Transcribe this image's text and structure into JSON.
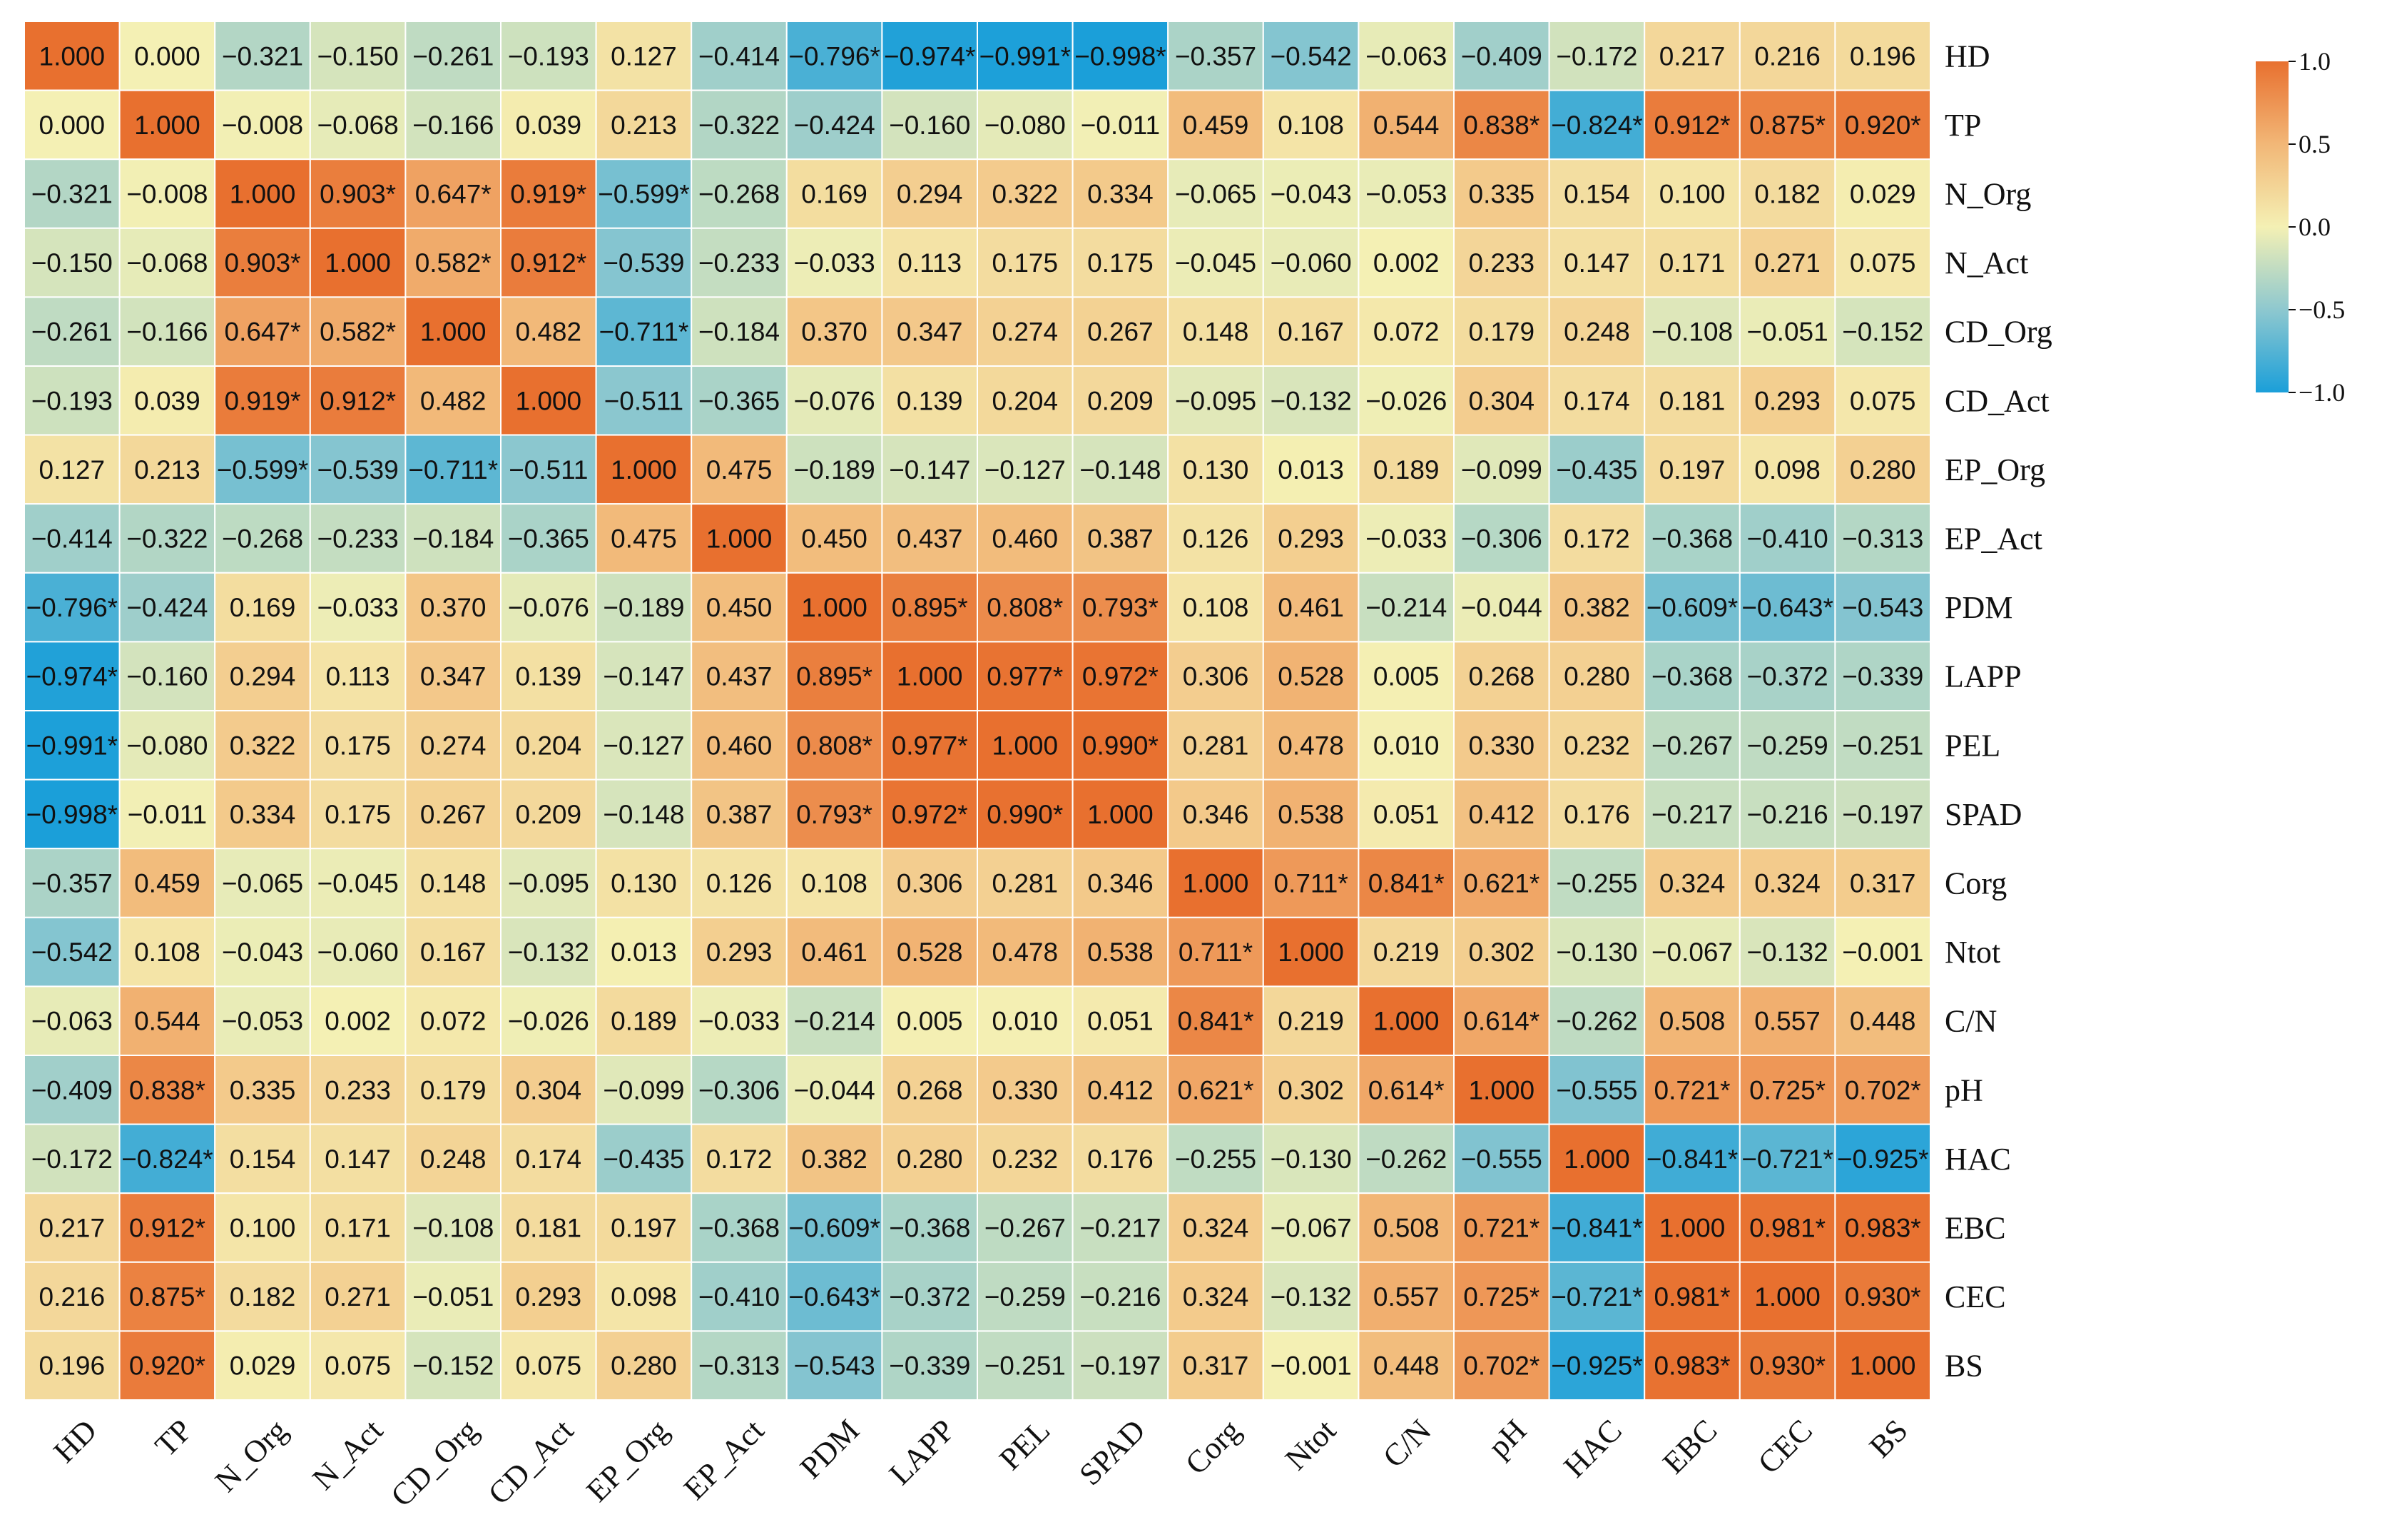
{
  "chart_data": {
    "type": "heatmap",
    "title": "",
    "variables": [
      "HD",
      "TP",
      "N_Org",
      "N_Act",
      "CD_Org",
      "CD_Act",
      "EP_Org",
      "EP_Act",
      "PDM",
      "LAPP",
      "PEL",
      "SPAD",
      "Corg",
      "Ntot",
      "C/N",
      "pH",
      "HAC",
      "EBC",
      "CEC",
      "BS"
    ],
    "values": [
      [
        1.0,
        0.0,
        -0.321,
        -0.15,
        -0.261,
        -0.193,
        0.127,
        -0.414,
        -0.796,
        -0.974,
        -0.991,
        -0.998,
        -0.357,
        -0.542,
        -0.063,
        -0.409,
        -0.172,
        0.217,
        0.216,
        0.196
      ],
      [
        0.0,
        1.0,
        -0.008,
        -0.068,
        -0.166,
        0.039,
        0.213,
        -0.322,
        -0.424,
        -0.16,
        -0.08,
        -0.011,
        0.459,
        0.108,
        0.544,
        0.838,
        -0.824,
        0.912,
        0.875,
        0.92
      ],
      [
        -0.321,
        -0.008,
        1.0,
        0.903,
        0.647,
        0.919,
        -0.599,
        -0.268,
        0.169,
        0.294,
        0.322,
        0.334,
        -0.065,
        -0.043,
        -0.053,
        0.335,
        0.154,
        0.1,
        0.182,
        0.029
      ],
      [
        -0.15,
        -0.068,
        0.903,
        1.0,
        0.582,
        0.912,
        -0.539,
        -0.233,
        -0.033,
        0.113,
        0.175,
        0.175,
        -0.045,
        -0.06,
        0.002,
        0.233,
        0.147,
        0.171,
        0.271,
        0.075
      ],
      [
        -0.261,
        -0.166,
        0.647,
        0.582,
        1.0,
        0.482,
        -0.711,
        -0.184,
        0.37,
        0.347,
        0.274,
        0.267,
        0.148,
        0.167,
        0.072,
        0.179,
        0.248,
        -0.108,
        -0.051,
        -0.152
      ],
      [
        -0.193,
        0.039,
        0.919,
        0.912,
        0.482,
        1.0,
        -0.511,
        -0.365,
        -0.076,
        0.139,
        0.204,
        0.209,
        -0.095,
        -0.132,
        -0.026,
        0.304,
        0.174,
        0.181,
        0.293,
        0.075
      ],
      [
        0.127,
        0.213,
        -0.599,
        -0.539,
        -0.711,
        -0.511,
        1.0,
        0.475,
        -0.189,
        -0.147,
        -0.127,
        -0.148,
        0.13,
        0.013,
        0.189,
        -0.099,
        -0.435,
        0.197,
        0.098,
        0.28
      ],
      [
        -0.414,
        -0.322,
        -0.268,
        -0.233,
        -0.184,
        -0.365,
        0.475,
        1.0,
        0.45,
        0.437,
        0.46,
        0.387,
        0.126,
        0.293,
        -0.033,
        -0.306,
        0.172,
        -0.368,
        -0.41,
        -0.313
      ],
      [
        -0.796,
        -0.424,
        0.169,
        -0.033,
        0.37,
        -0.076,
        -0.189,
        0.45,
        1.0,
        0.895,
        0.808,
        0.793,
        0.108,
        0.461,
        -0.214,
        -0.044,
        0.382,
        -0.609,
        -0.643,
        -0.543
      ],
      [
        -0.974,
        -0.16,
        0.294,
        0.113,
        0.347,
        0.139,
        -0.147,
        0.437,
        0.895,
        1.0,
        0.977,
        0.972,
        0.306,
        0.528,
        0.005,
        0.268,
        0.28,
        -0.368,
        -0.372,
        -0.339
      ],
      [
        -0.991,
        -0.08,
        0.322,
        0.175,
        0.274,
        0.204,
        -0.127,
        0.46,
        0.808,
        0.977,
        1.0,
        0.99,
        0.281,
        0.478,
        0.01,
        0.33,
        0.232,
        -0.267,
        -0.259,
        -0.251
      ],
      [
        -0.998,
        -0.011,
        0.334,
        0.175,
        0.267,
        0.209,
        -0.148,
        0.387,
        0.793,
        0.972,
        0.99,
        1.0,
        0.346,
        0.538,
        0.051,
        0.412,
        0.176,
        -0.217,
        -0.216,
        -0.197
      ],
      [
        -0.357,
        0.459,
        -0.065,
        -0.045,
        0.148,
        -0.095,
        0.13,
        0.126,
        0.108,
        0.306,
        0.281,
        0.346,
        1.0,
        0.711,
        0.841,
        0.621,
        -0.255,
        0.324,
        0.324,
        0.317
      ],
      [
        -0.542,
        0.108,
        -0.043,
        -0.06,
        0.167,
        -0.132,
        0.013,
        0.293,
        0.461,
        0.528,
        0.478,
        0.538,
        0.711,
        1.0,
        0.219,
        0.302,
        -0.13,
        -0.067,
        -0.132,
        -0.001
      ],
      [
        -0.063,
        0.544,
        -0.053,
        0.002,
        0.072,
        -0.026,
        0.189,
        -0.033,
        -0.214,
        0.005,
        0.01,
        0.051,
        0.841,
        0.219,
        1.0,
        0.614,
        -0.262,
        0.508,
        0.557,
        0.448
      ],
      [
        -0.409,
        0.838,
        0.335,
        0.233,
        0.179,
        0.304,
        -0.099,
        -0.306,
        -0.044,
        0.268,
        0.33,
        0.412,
        0.621,
        0.302,
        0.614,
        1.0,
        -0.555,
        0.721,
        0.725,
        0.702
      ],
      [
        -0.172,
        -0.824,
        0.154,
        0.147,
        0.248,
        0.174,
        -0.435,
        0.172,
        0.382,
        0.28,
        0.232,
        0.176,
        -0.255,
        -0.13,
        -0.262,
        -0.555,
        1.0,
        -0.841,
        -0.721,
        -0.925
      ],
      [
        0.217,
        0.912,
        0.1,
        0.171,
        -0.108,
        0.181,
        0.197,
        -0.368,
        -0.609,
        -0.368,
        -0.267,
        -0.217,
        0.324,
        -0.067,
        0.508,
        0.721,
        -0.841,
        1.0,
        0.981,
        0.983
      ],
      [
        0.216,
        0.875,
        0.182,
        0.271,
        -0.051,
        0.293,
        0.098,
        -0.41,
        -0.643,
        -0.372,
        -0.259,
        -0.216,
        0.324,
        -0.132,
        0.557,
        0.725,
        -0.721,
        0.981,
        1.0,
        0.93
      ],
      [
        0.196,
        0.92,
        0.029,
        0.075,
        -0.152,
        0.075,
        0.28,
        -0.313,
        -0.543,
        -0.339,
        -0.251,
        -0.197,
        0.317,
        -0.001,
        0.448,
        0.702,
        -0.925,
        0.983,
        0.93,
        1.0
      ]
    ],
    "significant": [
      [
        0,
        0,
        0,
        0,
        0,
        0,
        0,
        0,
        1,
        1,
        1,
        1,
        0,
        0,
        0,
        0,
        0,
        0,
        0,
        0
      ],
      [
        0,
        0,
        0,
        0,
        0,
        0,
        0,
        0,
        0,
        0,
        0,
        0,
        0,
        0,
        0,
        1,
        1,
        1,
        1,
        1
      ],
      [
        0,
        0,
        0,
        1,
        1,
        1,
        1,
        0,
        0,
        0,
        0,
        0,
        0,
        0,
        0,
        0,
        0,
        0,
        0,
        0
      ],
      [
        0,
        0,
        1,
        0,
        1,
        1,
        0,
        0,
        0,
        0,
        0,
        0,
        0,
        0,
        0,
        0,
        0,
        0,
        0,
        0
      ],
      [
        0,
        0,
        1,
        1,
        0,
        0,
        1,
        0,
        0,
        0,
        0,
        0,
        0,
        0,
        0,
        0,
        0,
        0,
        0,
        0
      ],
      [
        0,
        0,
        1,
        1,
        0,
        0,
        0,
        0,
        0,
        0,
        0,
        0,
        0,
        0,
        0,
        0,
        0,
        0,
        0,
        0
      ],
      [
        0,
        0,
        1,
        0,
        1,
        0,
        0,
        0,
        0,
        0,
        0,
        0,
        0,
        0,
        0,
        0,
        0,
        0,
        0,
        0
      ],
      [
        0,
        0,
        0,
        0,
        0,
        0,
        0,
        0,
        0,
        0,
        0,
        0,
        0,
        0,
        0,
        0,
        0,
        0,
        0,
        0
      ],
      [
        1,
        0,
        0,
        0,
        0,
        0,
        0,
        0,
        0,
        1,
        1,
        1,
        0,
        0,
        0,
        0,
        0,
        1,
        1,
        0
      ],
      [
        1,
        0,
        0,
        0,
        0,
        0,
        0,
        0,
        1,
        0,
        1,
        1,
        0,
        0,
        0,
        0,
        0,
        0,
        0,
        0
      ],
      [
        1,
        0,
        0,
        0,
        0,
        0,
        0,
        0,
        1,
        1,
        0,
        1,
        0,
        0,
        0,
        0,
        0,
        0,
        0,
        0
      ],
      [
        1,
        0,
        0,
        0,
        0,
        0,
        0,
        0,
        1,
        1,
        1,
        0,
        0,
        0,
        0,
        0,
        0,
        0,
        0,
        0
      ],
      [
        0,
        0,
        0,
        0,
        0,
        0,
        0,
        0,
        0,
        0,
        0,
        0,
        0,
        1,
        1,
        1,
        0,
        0,
        0,
        0
      ],
      [
        0,
        0,
        0,
        0,
        0,
        0,
        0,
        0,
        0,
        0,
        0,
        0,
        1,
        0,
        0,
        0,
        0,
        0,
        0,
        0
      ],
      [
        0,
        0,
        0,
        0,
        0,
        0,
        0,
        0,
        0,
        0,
        0,
        0,
        1,
        0,
        0,
        1,
        0,
        0,
        0,
        0
      ],
      [
        0,
        1,
        0,
        0,
        0,
        0,
        0,
        0,
        0,
        0,
        0,
        0,
        1,
        0,
        1,
        0,
        0,
        1,
        1,
        1
      ],
      [
        0,
        1,
        0,
        0,
        0,
        0,
        0,
        0,
        0,
        0,
        0,
        0,
        0,
        0,
        0,
        0,
        0,
        1,
        1,
        1
      ],
      [
        0,
        1,
        0,
        0,
        0,
        0,
        0,
        0,
        1,
        0,
        0,
        0,
        0,
        0,
        0,
        1,
        1,
        0,
        1,
        1
      ],
      [
        0,
        1,
        0,
        0,
        0,
        0,
        0,
        0,
        1,
        0,
        0,
        0,
        0,
        0,
        0,
        1,
        1,
        1,
        0,
        1
      ],
      [
        0,
        1,
        0,
        0,
        0,
        0,
        0,
        0,
        0,
        0,
        0,
        0,
        0,
        0,
        0,
        1,
        1,
        1,
        1,
        0
      ]
    ],
    "significance_marker": "*",
    "value_range": [
      -1.0,
      1.0
    ],
    "colorbar": {
      "ticks": [
        1.0,
        0.5,
        0.0,
        -0.5,
        -1.0
      ],
      "tick_labels": [
        "1.0",
        "0.5",
        "0.0",
        "−0.5",
        "−1.0"
      ],
      "colors": [
        "#1b9fd9",
        "#8ec8cf",
        "#f4f0b4",
        "#f2b777",
        "#e8702f"
      ]
    },
    "legend_position": "top-right"
  }
}
